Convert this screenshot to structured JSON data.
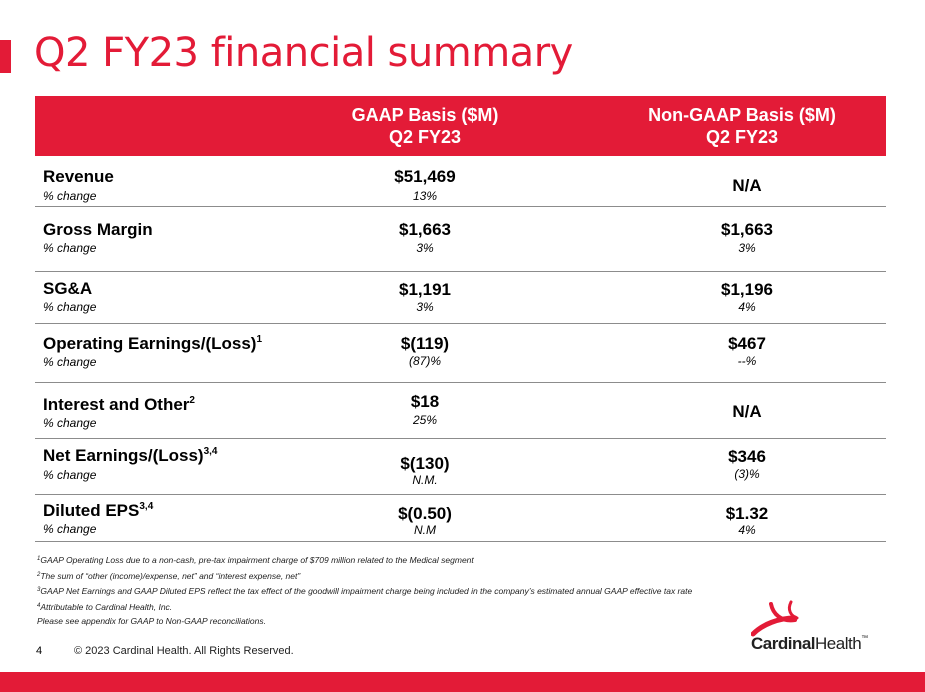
{
  "title": "Q2 FY23 financial summary",
  "header": {
    "gaap": [
      "GAAP Basis ($M)",
      "Q2 FY23"
    ],
    "nongaap": [
      "Non-GAAP Basis ($M)",
      "Q2 FY23"
    ]
  },
  "rows": [
    {
      "label": "Revenue",
      "sup": "",
      "sub": "% change",
      "gaap": "$51,469",
      "gaap_pct": "13%",
      "ng": "N/A",
      "ng_pct": ""
    },
    {
      "label": "Gross Margin",
      "sup": "",
      "sub": "% change",
      "gaap": "$1,663",
      "gaap_pct": "3%",
      "ng": "$1,663",
      "ng_pct": "3%"
    },
    {
      "label": "SG&A",
      "sup": "",
      "sub": "% change",
      "gaap": "$1,191",
      "gaap_pct": "3%",
      "ng": "$1,196",
      "ng_pct": "4%"
    },
    {
      "label": "Operating Earnings/(Loss)",
      "sup": "1",
      "sub": "% change",
      "gaap": "$(119)",
      "gaap_pct": "(87)%",
      "ng": "$467",
      "ng_pct": "--%"
    },
    {
      "label": "Interest and Other",
      "sup": "2",
      "sub": "% change",
      "gaap": "$18",
      "gaap_pct": "25%",
      "ng": "N/A",
      "ng_pct": ""
    },
    {
      "label": "Net Earnings/(Loss)",
      "sup": "3,4",
      "sub": "% change",
      "gaap": "$(130)",
      "gaap_pct": "N.M.",
      "ng": "$346",
      "ng_pct": "(3)%"
    },
    {
      "label": "Diluted EPS",
      "sup": "3,4",
      "sub": "% change",
      "gaap": "$(0.50)",
      "gaap_pct": "N.M",
      "ng": "$1.32",
      "ng_pct": "4%"
    }
  ],
  "footnotes": [
    {
      "sup": "1",
      "text": "GAAP Operating Loss due to a non-cash, pre-tax impairment charge of $709 million related to the Medical segment"
    },
    {
      "sup": "2",
      "text": "The sum of “other (income)/expense, net” and “interest expense, net”"
    },
    {
      "sup": "3",
      "text": "GAAP Net Earnings and GAAP Diluted EPS reflect the tax effect of the goodwill impairment charge being included in the company’s estimated annual GAAP effective tax rate"
    },
    {
      "sup": "4",
      "text": "Attributable to Cardinal Health, Inc."
    },
    {
      "sup": "",
      "text": "Please see appendix for GAAP to Non-GAAP reconciliations."
    }
  ],
  "footer": {
    "page": "4",
    "copyright": "© 2023 Cardinal Health. All Rights Reserved.",
    "logo_bold": "Cardinal",
    "logo_light": "Health",
    "logo_tm": "™"
  },
  "colors": {
    "accent": "#e31b37"
  }
}
